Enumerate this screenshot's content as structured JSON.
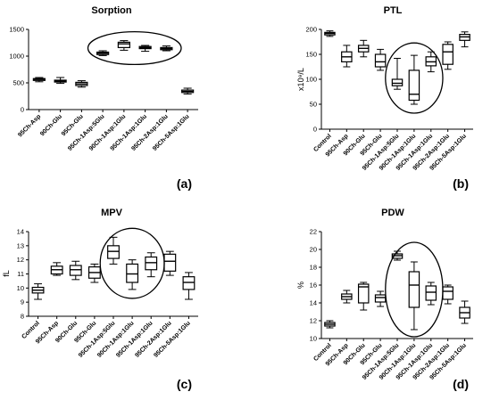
{
  "chart_data": [
    {
      "type": "box",
      "title": "Sorption",
      "panel_label": "(a)",
      "ylabel": "",
      "ylim": [
        0,
        1500
      ],
      "yticks": [
        0,
        500,
        1000,
        1500
      ],
      "categories": [
        "95Ch-Asp",
        "90Ch-Glu",
        "95Ch-Glu",
        "95Ch-1Asp:5Glu",
        "90Ch-1Asp:1Glu",
        "95Ch-1Asp:1Glu",
        "95Ch-2Asp:1Glu",
        "95Ch-5Asp:1Glu"
      ],
      "boxes": [
        {
          "min": 520,
          "q1": 545,
          "median": 565,
          "q3": 580,
          "max": 600
        },
        {
          "min": 490,
          "q1": 515,
          "median": 535,
          "q3": 550,
          "max": 600
        },
        {
          "min": 420,
          "q1": 450,
          "median": 480,
          "q3": 510,
          "max": 540
        },
        {
          "min": 1010,
          "q1": 1030,
          "median": 1055,
          "q3": 1075,
          "max": 1100
        },
        {
          "min": 1110,
          "q1": 1160,
          "median": 1230,
          "q3": 1260,
          "max": 1290
        },
        {
          "min": 1090,
          "q1": 1140,
          "median": 1160,
          "q3": 1180,
          "max": 1200
        },
        {
          "min": 1100,
          "q1": 1120,
          "median": 1140,
          "q3": 1160,
          "max": 1190
        },
        {
          "min": 290,
          "q1": 320,
          "median": 340,
          "q3": 365,
          "max": 400
        }
      ],
      "highlight": [
        3,
        6
      ]
    },
    {
      "type": "box",
      "title": "PTL",
      "panel_label": "(b)",
      "ylabel": "x10⁹/L",
      "ylim": [
        0,
        200
      ],
      "yticks": [
        0,
        50,
        100,
        150,
        200
      ],
      "categories": [
        "Control",
        "95Ch-Asp",
        "90Ch-Glu",
        "95Ch-Glu",
        "95Ch-1Asp:5Glu",
        "90Ch-1Asp:1Glu",
        "95Ch-1Asp:1Glu",
        "95Ch-2Asp:1Glu",
        "95Ch-5Asp:1Glu"
      ],
      "boxes": [
        {
          "min": 186,
          "q1": 189,
          "median": 192,
          "q3": 194,
          "max": 197
        },
        {
          "min": 125,
          "q1": 135,
          "median": 145,
          "q3": 155,
          "max": 168
        },
        {
          "min": 145,
          "q1": 155,
          "median": 162,
          "q3": 168,
          "max": 178
        },
        {
          "min": 118,
          "q1": 125,
          "median": 135,
          "q3": 150,
          "max": 160
        },
        {
          "min": 80,
          "q1": 87,
          "median": 92,
          "q3": 100,
          "max": 142
        },
        {
          "min": 50,
          "q1": 58,
          "median": 70,
          "q3": 118,
          "max": 148
        },
        {
          "min": 115,
          "q1": 127,
          "median": 135,
          "q3": 145,
          "max": 155
        },
        {
          "min": 120,
          "q1": 130,
          "median": 155,
          "q3": 170,
          "max": 175
        },
        {
          "min": 165,
          "q1": 178,
          "median": 185,
          "q3": 190,
          "max": 195
        }
      ],
      "highlight": [
        4,
        6
      ]
    },
    {
      "type": "box",
      "title": "MPV",
      "panel_label": "(c)",
      "ylabel": "fL",
      "ylim": [
        8,
        14
      ],
      "yticks": [
        8,
        9,
        10,
        11,
        12,
        13,
        14
      ],
      "categories": [
        "Control",
        "95Ch-Asp",
        "90Ch-Glu",
        "95Ch-Glu",
        "95Ch-1Asp:5Glu",
        "90Ch-1Asp:1Glu",
        "95Ch-1Asp:1Glu",
        "95Ch-2Asp:1Glu",
        "95Ch-5Asp:1Glu"
      ],
      "boxes": [
        {
          "min": 9.2,
          "q1": 9.65,
          "median": 9.85,
          "q3": 10.05,
          "max": 10.3
        },
        {
          "min": 10.9,
          "q1": 11.0,
          "median": 11.3,
          "q3": 11.55,
          "max": 11.8
        },
        {
          "min": 10.6,
          "q1": 10.9,
          "median": 11.3,
          "q3": 11.6,
          "max": 11.9
        },
        {
          "min": 10.4,
          "q1": 10.7,
          "median": 11.1,
          "q3": 11.5,
          "max": 11.7
        },
        {
          "min": 11.7,
          "q1": 12.1,
          "median": 12.6,
          "q3": 13.0,
          "max": 13.6
        },
        {
          "min": 9.9,
          "q1": 10.4,
          "median": 11.0,
          "q3": 11.7,
          "max": 12.0
        },
        {
          "min": 10.8,
          "q1": 11.3,
          "median": 11.8,
          "q3": 12.2,
          "max": 12.5
        },
        {
          "min": 10.9,
          "q1": 11.2,
          "median": 11.9,
          "q3": 12.4,
          "max": 12.6
        },
        {
          "min": 9.2,
          "q1": 9.9,
          "median": 10.4,
          "q3": 10.8,
          "max": 11.1
        }
      ],
      "highlight": [
        4,
        6
      ]
    },
    {
      "type": "box",
      "title": "PDW",
      "panel_label": "(d)",
      "ylabel": "%",
      "ylim": [
        10,
        22
      ],
      "yticks": [
        10,
        12,
        14,
        16,
        18,
        20,
        22
      ],
      "categories": [
        "Control",
        "95Ch-Asp",
        "90Ch-Glu",
        "95Ch-Glu",
        "95Ch-1Asp:5Glu",
        "90Ch-1Asp:1Glu",
        "95Ch-1Asp:1Glu",
        "95Ch-2Asp:1Glu",
        "95Ch-5Asp:1Glu"
      ],
      "boxes": [
        {
          "min": 11.2,
          "q1": 11.4,
          "median": 11.6,
          "q3": 11.8,
          "max": 12.0
        },
        {
          "min": 14.0,
          "q1": 14.4,
          "median": 14.7,
          "q3": 15.0,
          "max": 15.4
        },
        {
          "min": 13.2,
          "q1": 14.0,
          "median": 15.8,
          "q3": 16.1,
          "max": 16.3
        },
        {
          "min": 13.6,
          "q1": 14.1,
          "median": 14.6,
          "q3": 14.9,
          "max": 15.3
        },
        {
          "min": 18.8,
          "q1": 19.0,
          "median": 19.3,
          "q3": 19.5,
          "max": 19.8
        },
        {
          "min": 11.0,
          "q1": 13.5,
          "median": 16.0,
          "q3": 17.5,
          "max": 18.6
        },
        {
          "min": 13.8,
          "q1": 14.3,
          "median": 15.2,
          "q3": 15.9,
          "max": 16.3
        },
        {
          "min": 13.9,
          "q1": 14.4,
          "median": 15.3,
          "q3": 15.8,
          "max": 16.0
        },
        {
          "min": 11.7,
          "q1": 12.3,
          "median": 12.9,
          "q3": 13.5,
          "max": 14.2
        }
      ],
      "highlight": [
        4,
        6
      ]
    }
  ]
}
